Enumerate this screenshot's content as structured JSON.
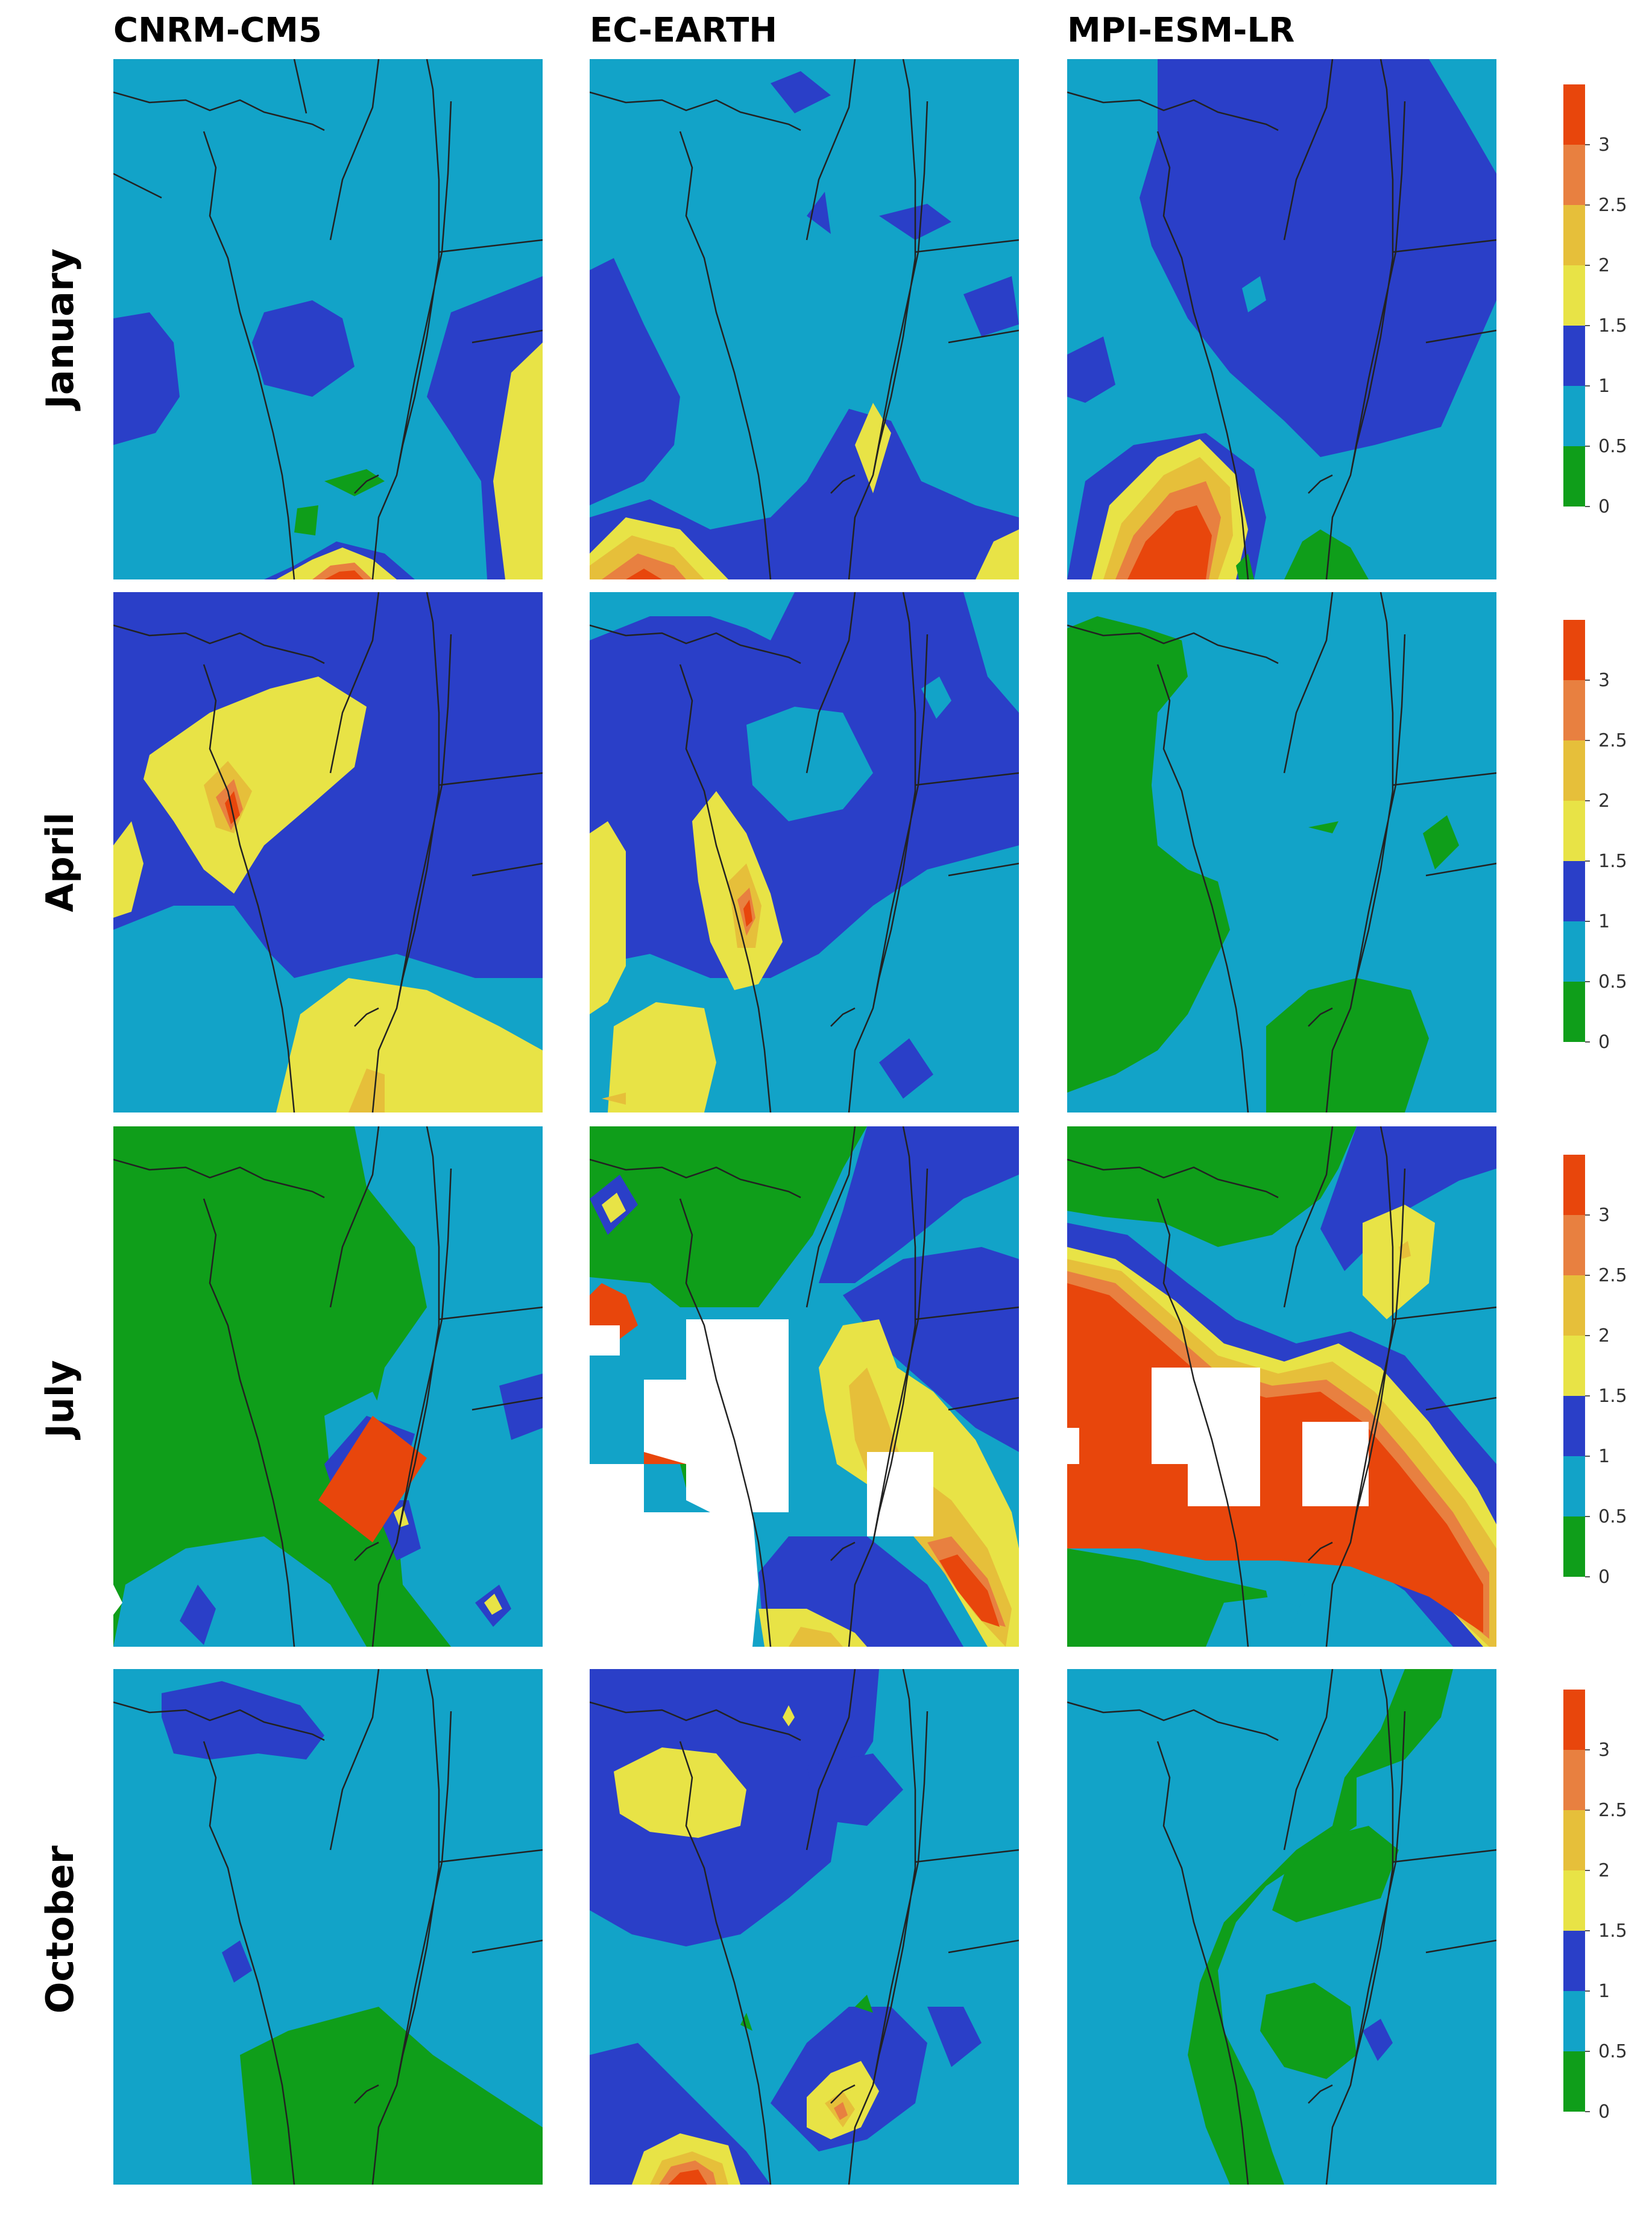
{
  "columns": [
    "CNRM-CM5",
    "EC-EARTH",
    "MPI-ESM-LR"
  ],
  "rows": [
    "January",
    "April",
    "July",
    "October"
  ],
  "colorbar": {
    "tick_labels": [
      "3",
      "2.5",
      "2",
      "1.5",
      "1",
      "0.5",
      "0"
    ],
    "colors": [
      "#e8460c",
      "#e88040",
      "#e6bf3a",
      "#e8e346",
      "#2a3fc8",
      "#12a3c8",
      "#0f9e1a"
    ]
  },
  "palette": {
    "cyan": "#12a3c8",
    "blue": "#2a3fc8",
    "green": "#0f9e1a",
    "yellow": "#e8e346",
    "gold": "#e6bf3a",
    "orange": "#e88040",
    "red": "#e8460c",
    "white": "#ffffff"
  }
}
